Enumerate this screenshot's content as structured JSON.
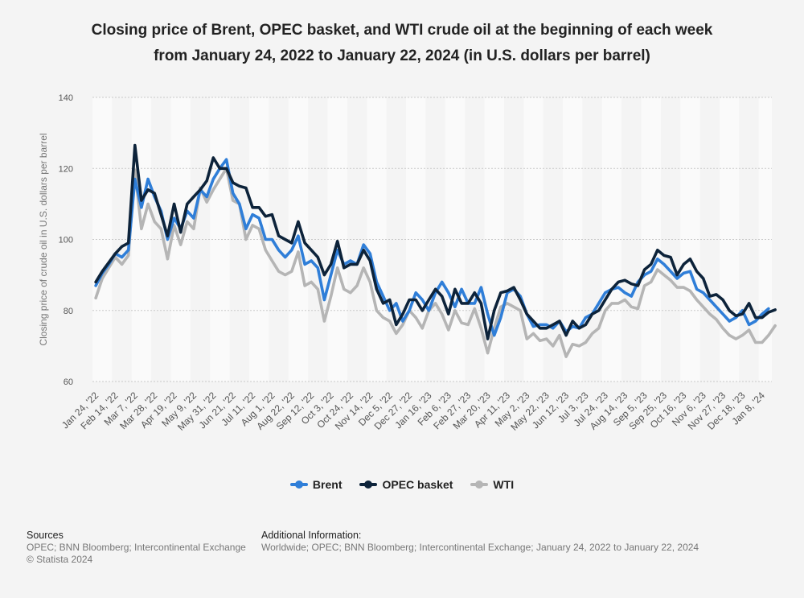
{
  "title_line1": "Closing price of Brent, OPEC basket, and WTI crude oil at the beginning of each week",
  "title_line2": "from January 24, 2022 to January 22, 2024 (in U.S. dollars per barrel)",
  "footer": {
    "sources_heading": "Sources",
    "sources_text": "OPEC; BNN Bloomberg; Intercontinental Exchange",
    "copyright": "© Statista 2024",
    "info_heading": "Additional Information:",
    "info_text": "Worldwide; OPEC; BNN Bloomberg; Intercontinental Exchange; January 24, 2022 to January 22, 2024"
  },
  "chart_data": {
    "type": "line",
    "title": "Closing price of Brent, OPEC basket, and WTI crude oil at the beginning of each week from January 24, 2022 to January 22, 2024 (in U.S. dollars per barrel)",
    "xlabel": "",
    "ylabel": "Closing price of crude oil in U.S. dollars per barrel",
    "ylim": [
      60,
      140
    ],
    "yticks": [
      60,
      80,
      100,
      120,
      140
    ],
    "grid": true,
    "legend_position": "bottom",
    "tick_labels": [
      "Jan 24, '22",
      "Feb 14, '22",
      "Mar 7, '22",
      "Mar 28, '22",
      "Apr 19, '22",
      "May 9, '22",
      "May 31, '22",
      "Jun 21, '22",
      "Jul 11, '22",
      "Aug 1, '22",
      "Aug 22, '22",
      "Sep 12, '22",
      "Oct 3, '22",
      "Oct 24, '22",
      "Nov 14, '22",
      "Dec 5, '22",
      "Dec 27, '22",
      "Jan 16, '23",
      "Feb 6, '23",
      "Feb 27, '23",
      "Mar 20, '23",
      "Apr 11, '23",
      "May 2, '23",
      "May 22, '23",
      "Jun 12, '23",
      "Jul 3, '23",
      "Jul 24, '23",
      "Aug 14, '23",
      "Sep 5, '23",
      "Sep 25, '23",
      "Oct 16, '23",
      "Nov 6, '23",
      "Nov 27, '23",
      "Dec 18, '23",
      "Jan 8, '24"
    ],
    "series": [
      {
        "name": "Brent",
        "color": "#2f7ed8",
        "values": [
          87,
          90.5,
          93,
          96,
          95,
          97,
          117,
          109,
          117,
          112,
          108,
          100,
          106,
          103,
          108,
          106,
          114,
          112,
          117,
          120,
          122.5,
          113,
          110,
          103,
          107,
          106,
          100,
          100,
          97,
          95,
          97,
          101,
          93,
          94,
          92,
          83,
          90,
          97,
          93,
          94,
          93,
          98.5,
          96,
          88,
          84,
          80,
          82,
          77,
          80,
          85,
          83,
          80,
          85,
          88,
          85,
          81,
          86,
          82,
          82,
          86.5,
          79,
          73,
          78,
          85,
          86,
          84,
          79,
          75.5,
          76,
          76,
          75,
          77,
          74,
          75.5,
          75,
          78,
          79,
          82,
          85,
          86,
          86.5,
          85,
          84,
          88,
          90,
          91,
          94.5,
          93,
          91,
          89,
          90.5,
          91,
          86,
          85,
          83,
          81,
          79,
          77,
          78,
          80,
          76,
          77,
          79,
          80.5
        ]
      },
      {
        "name": "OPEC basket",
        "color": "#0d233a",
        "values": [
          88,
          91,
          93.5,
          96,
          98,
          99,
          126.5,
          111,
          114,
          113,
          107,
          101,
          110,
          102,
          110,
          112,
          114,
          116.5,
          123,
          120,
          120,
          116,
          115,
          114.5,
          109,
          109,
          106.5,
          107,
          101,
          100,
          99,
          105,
          99,
          97,
          95,
          90,
          93,
          99.5,
          92,
          93,
          93,
          97,
          94,
          86,
          82,
          83,
          76,
          79,
          83,
          83,
          80,
          83,
          86,
          84,
          79,
          86,
          82,
          82,
          85,
          82,
          72,
          80,
          85,
          85.5,
          86.5,
          83,
          79,
          77,
          75,
          75,
          76,
          77,
          73,
          77,
          75,
          76,
          79,
          80,
          83,
          86,
          88,
          88.5,
          87.5,
          87,
          91.5,
          93,
          97,
          95.5,
          95,
          90,
          93,
          94.5,
          91,
          89,
          84,
          84.5,
          83,
          80,
          78.5,
          79,
          82,
          78,
          78,
          79.5,
          80.2
        ]
      },
      {
        "name": "WTI",
        "color": "#b5b5b5",
        "values": [
          83.5,
          89,
          92,
          95,
          93,
          95.5,
          119.5,
          103,
          110,
          105,
          103,
          94.5,
          104,
          98.5,
          105,
          103,
          114.5,
          110.5,
          114,
          117,
          120,
          111,
          110,
          100,
          104,
          103,
          97,
          94,
          91,
          90,
          91,
          96.5,
          87,
          88,
          86,
          77,
          84,
          92,
          86,
          85,
          87,
          92,
          88,
          80,
          78,
          77,
          73.5,
          76,
          80,
          78,
          75,
          80,
          82,
          79,
          74.5,
          80,
          76.5,
          76,
          80.5,
          75,
          68,
          75,
          81,
          82,
          81,
          80,
          72,
          73.5,
          71.5,
          72,
          70,
          73,
          67,
          70.5,
          70,
          71,
          73.5,
          75,
          80,
          82,
          82,
          83,
          81,
          80.5,
          87,
          88,
          91.5,
          90,
          88.5,
          86.5,
          86.5,
          85.5,
          83,
          81,
          79,
          77.5,
          75,
          73,
          72,
          73,
          74.5,
          71,
          71,
          73,
          75.7
        ]
      }
    ]
  }
}
